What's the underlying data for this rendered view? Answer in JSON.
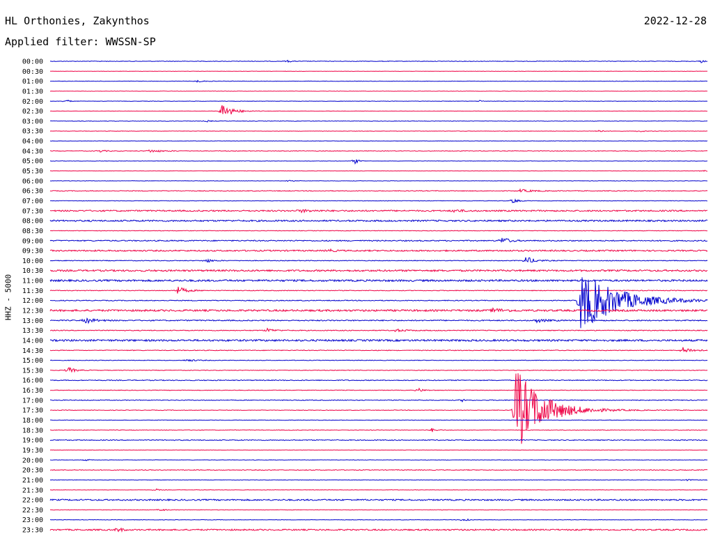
{
  "header": {
    "station": "HL Orthonies, Zakynthos",
    "date": "2022-12-28",
    "filter": "Applied filter: WWSSN-SP",
    "channel": "HHZ - 5000"
  },
  "colors": {
    "even": "#0000cc",
    "odd": "#ee0044"
  },
  "chart_data": {
    "type": "line",
    "title": "HL Orthonies, Zakynthos",
    "ylabel": "HHZ - 5000",
    "xlim_minutes": [
      0,
      30
    ],
    "rows": [
      {
        "label": "00:00",
        "noise": 0.4,
        "events": [
          {
            "t": 10.8,
            "a": 1.5,
            "d": 0.4
          },
          {
            "t": 29.7,
            "a": 2,
            "d": 0.3
          }
        ]
      },
      {
        "label": "00:30",
        "noise": 0.2,
        "events": []
      },
      {
        "label": "01:00",
        "noise": 0.3,
        "events": [
          {
            "t": 6.7,
            "a": 1.5,
            "d": 0.6
          }
        ]
      },
      {
        "label": "01:30",
        "noise": 0.2,
        "events": []
      },
      {
        "label": "02:00",
        "noise": 0.3,
        "events": [
          {
            "t": 0.7,
            "a": 3,
            "d": 0.3
          },
          {
            "t": 19.6,
            "a": 2,
            "d": 0.2
          }
        ]
      },
      {
        "label": "02:30",
        "noise": 0.2,
        "events": [
          {
            "t": 7.8,
            "a": 12,
            "d": 1.0
          }
        ]
      },
      {
        "label": "03:00",
        "noise": 0.3,
        "events": [
          {
            "t": 7.1,
            "a": 1.5,
            "d": 0.4
          }
        ]
      },
      {
        "label": "03:30",
        "noise": 0.3,
        "events": [
          {
            "t": 25.0,
            "a": 3,
            "d": 0.3
          },
          {
            "t": 26.9,
            "a": 2,
            "d": 0.3
          }
        ]
      },
      {
        "label": "04:00",
        "noise": 0.3,
        "events": []
      },
      {
        "label": "04:30",
        "noise": 0.4,
        "events": [
          {
            "t": 2.2,
            "a": 2,
            "d": 0.6
          },
          {
            "t": 4.5,
            "a": 2,
            "d": 1.3
          }
        ]
      },
      {
        "label": "05:00",
        "noise": 0.3,
        "events": [
          {
            "t": 13.9,
            "a": 5,
            "d": 0.3
          }
        ]
      },
      {
        "label": "05:30",
        "noise": 0.2,
        "events": [
          {
            "t": 29.8,
            "a": 1.5,
            "d": 0.5
          }
        ]
      },
      {
        "label": "06:00",
        "noise": 0.3,
        "events": [
          {
            "t": 10.8,
            "a": 1.5,
            "d": 0.3
          }
        ]
      },
      {
        "label": "06:30",
        "noise": 0.5,
        "events": [
          {
            "t": 21.4,
            "a": 2,
            "d": 1.4
          }
        ]
      },
      {
        "label": "07:00",
        "noise": 0.3,
        "events": [
          {
            "t": 21.1,
            "a": 5,
            "d": 0.4
          }
        ]
      },
      {
        "label": "07:30",
        "noise": 1.0,
        "events": [
          {
            "t": 11.4,
            "a": 2,
            "d": 1
          },
          {
            "t": 18.4,
            "a": 2,
            "d": 0.8
          }
        ]
      },
      {
        "label": "08:00",
        "noise": 1.1,
        "events": []
      },
      {
        "label": "08:30",
        "noise": 0.4,
        "events": []
      },
      {
        "label": "09:00",
        "noise": 0.8,
        "events": [
          {
            "t": 20.6,
            "a": 6,
            "d": 0.6
          }
        ]
      },
      {
        "label": "09:30",
        "noise": 1.0,
        "events": [
          {
            "t": 12.7,
            "a": 2,
            "d": 0.5
          }
        ]
      },
      {
        "label": "10:00",
        "noise": 0.5,
        "events": [
          {
            "t": 7.1,
            "a": 3,
            "d": 0.6
          },
          {
            "t": 21.7,
            "a": 6,
            "d": 0.8
          }
        ]
      },
      {
        "label": "10:30",
        "noise": 1.2,
        "events": []
      },
      {
        "label": "11:00",
        "noise": 1.3,
        "events": []
      },
      {
        "label": "11:30",
        "noise": 0.5,
        "events": [
          {
            "t": 5.8,
            "a": 6,
            "d": 0.8
          }
        ]
      },
      {
        "label": "12:00",
        "noise": 0.6,
        "events": [
          {
            "t": 24.2,
            "a": 45,
            "d": 3.5
          }
        ]
      },
      {
        "label": "12:30",
        "noise": 1.3,
        "events": [
          {
            "t": 20.2,
            "a": 3,
            "d": 1.0
          }
        ]
      },
      {
        "label": "13:00",
        "noise": 0.8,
        "events": [
          {
            "t": 1.6,
            "a": 4,
            "d": 0.9
          },
          {
            "t": 22.2,
            "a": 3,
            "d": 0.8
          }
        ]
      },
      {
        "label": "13:30",
        "noise": 0.6,
        "events": [
          {
            "t": 9.9,
            "a": 3,
            "d": 0.6
          },
          {
            "t": 15.7,
            "a": 2,
            "d": 1.0
          }
        ]
      },
      {
        "label": "14:00",
        "noise": 1.3,
        "events": []
      },
      {
        "label": "14:30",
        "noise": 0.5,
        "events": [
          {
            "t": 28.8,
            "a": 5,
            "d": 1.0
          }
        ]
      },
      {
        "label": "15:00",
        "noise": 0.4,
        "events": [
          {
            "t": 6.2,
            "a": 2,
            "d": 0.8
          }
        ]
      },
      {
        "label": "15:30",
        "noise": 0.4,
        "events": [
          {
            "t": 0.8,
            "a": 5,
            "d": 0.6
          }
        ]
      },
      {
        "label": "16:00",
        "noise": 0.6,
        "events": []
      },
      {
        "label": "16:30",
        "noise": 0.4,
        "events": [
          {
            "t": 16.8,
            "a": 3,
            "d": 0.5
          }
        ]
      },
      {
        "label": "17:00",
        "noise": 0.5,
        "events": [
          {
            "t": 18.8,
            "a": 2,
            "d": 0.4
          }
        ]
      },
      {
        "label": "17:30",
        "noise": 0.4,
        "events": [
          {
            "t": 21.2,
            "a": 65,
            "d": 2.5
          }
        ]
      },
      {
        "label": "18:00",
        "noise": 0.3,
        "events": []
      },
      {
        "label": "18:30",
        "noise": 0.4,
        "events": [
          {
            "t": 17.4,
            "a": 3,
            "d": 0.4
          }
        ]
      },
      {
        "label": "19:00",
        "noise": 0.6,
        "events": []
      },
      {
        "label": "19:30",
        "noise": 0.2,
        "events": []
      },
      {
        "label": "20:00",
        "noise": 0.3,
        "events": [
          {
            "t": 1.6,
            "a": 1.5,
            "d": 0.3
          }
        ]
      },
      {
        "label": "20:30",
        "noise": 0.5,
        "events": []
      },
      {
        "label": "21:00",
        "noise": 0.3,
        "events": [
          {
            "t": 28.9,
            "a": 2,
            "d": 0.5
          }
        ]
      },
      {
        "label": "21:30",
        "noise": 0.3,
        "events": [
          {
            "t": 4.8,
            "a": 2,
            "d": 0.3
          }
        ]
      },
      {
        "label": "22:00",
        "noise": 1.0,
        "events": []
      },
      {
        "label": "22:30",
        "noise": 0.3,
        "events": [
          {
            "t": 5.0,
            "a": 2,
            "d": 0.5
          }
        ]
      },
      {
        "label": "23:00",
        "noise": 0.3,
        "events": [
          {
            "t": 18.9,
            "a": 5,
            "d": 0.3
          }
        ]
      },
      {
        "label": "23:30",
        "noise": 1.0,
        "events": [
          {
            "t": 3.1,
            "a": 5,
            "d": 0.3
          }
        ]
      }
    ]
  }
}
